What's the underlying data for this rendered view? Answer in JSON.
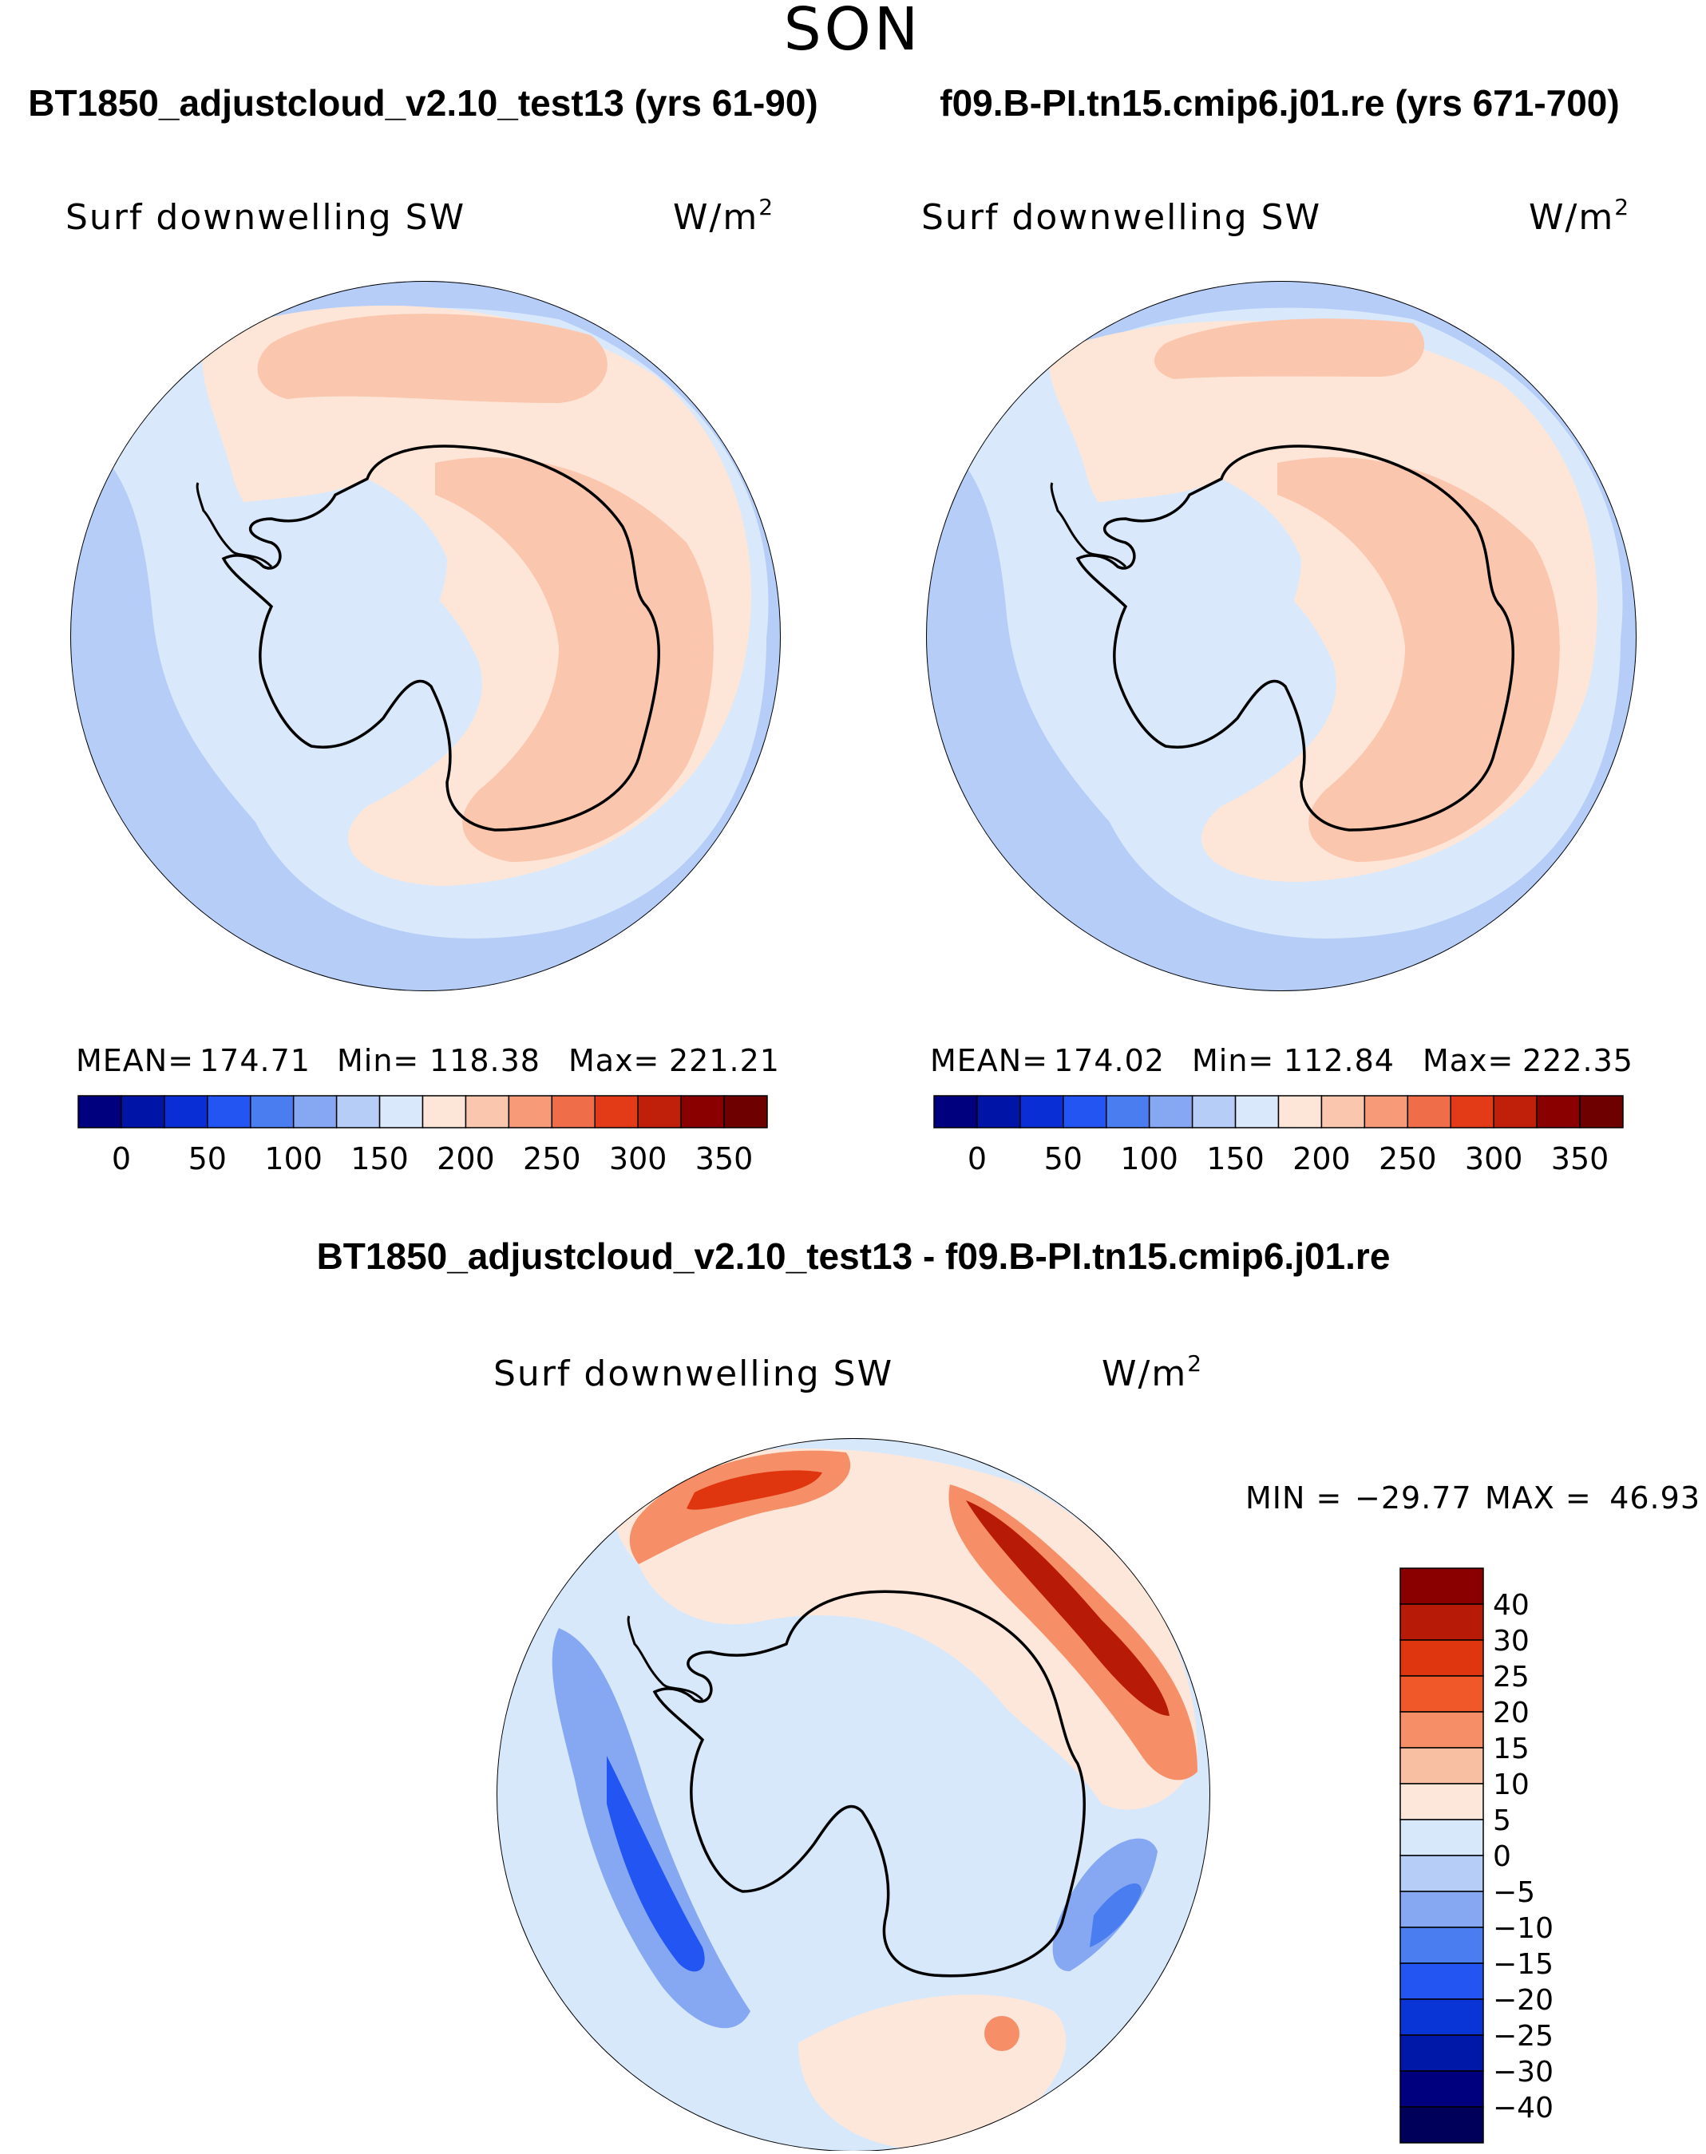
{
  "chart_data": [
    {
      "type": "heatmap",
      "projection": "south-polar-stereographic",
      "season": "SON",
      "title": "BT1850_adjustcloud_v2.10_test13 (yrs 61-90)",
      "variable": "Surf downwelling SW",
      "units": "W/m",
      "units_sup": "2",
      "stats": {
        "mean_label": "MEAN=",
        "mean": "174.71",
        "min_label": "Min=",
        "min": "118.38",
        "max_label": "Max=",
        "max": "221.21"
      },
      "colorbar": {
        "tick_labels": [
          "0",
          "50",
          "100",
          "150",
          "200",
          "250",
          "300",
          "350"
        ],
        "levels": [
          0,
          25,
          50,
          75,
          100,
          125,
          150,
          175,
          200,
          225,
          250,
          275,
          300,
          325,
          350
        ],
        "colors": [
          "#00007f",
          "#0015a8",
          "#0a2ed6",
          "#2255f2",
          "#4a7df0",
          "#86a8f3",
          "#b5cdf7",
          "#d9e9fb",
          "#fde6d8",
          "#fbc6ae",
          "#f69a78",
          "#ef6e49",
          "#e33b18",
          "#c0200a",
          "#8a0000",
          "#6e0000"
        ]
      }
    },
    {
      "type": "heatmap",
      "projection": "south-polar-stereographic",
      "season": "SON",
      "title": "f09.B-PI.tn15.cmip6.j01.re (yrs 671-700)",
      "variable": "Surf downwelling SW",
      "units": "W/m",
      "units_sup": "2",
      "stats": {
        "mean_label": "MEAN=",
        "mean": "174.02",
        "min_label": "Min=",
        "min": "112.84",
        "max_label": "Max=",
        "max": "222.35"
      },
      "colorbar": {
        "tick_labels": [
          "0",
          "50",
          "100",
          "150",
          "200",
          "250",
          "300",
          "350"
        ],
        "levels": [
          0,
          25,
          50,
          75,
          100,
          125,
          150,
          175,
          200,
          225,
          250,
          275,
          300,
          325,
          350
        ],
        "colors": [
          "#00007f",
          "#0015a8",
          "#0a2ed6",
          "#2255f2",
          "#4a7df0",
          "#86a8f3",
          "#b5cdf7",
          "#d9e9fb",
          "#fde6d8",
          "#fbc6ae",
          "#f69a78",
          "#ef6e49",
          "#e33b18",
          "#c0200a",
          "#8a0000",
          "#6e0000"
        ]
      }
    },
    {
      "type": "heatmap",
      "projection": "south-polar-stereographic",
      "season": "SON",
      "title": "BT1850_adjustcloud_v2.10_test13 - f09.B-PI.tn15.cmip6.j01.re",
      "variable": "Surf downwelling SW",
      "units": "W/m",
      "units_sup": "2",
      "stats": {
        "min_label": "MIN =",
        "min": "−29.77",
        "max_label": "MAX =",
        "max": "46.93"
      },
      "colorbar": {
        "tick_labels": [
          "40",
          "30",
          "25",
          "20",
          "15",
          "10",
          "5",
          "0",
          "−5",
          "−10",
          "−15",
          "−20",
          "−25",
          "−30",
          "−40"
        ],
        "levels": [
          40,
          30,
          25,
          20,
          15,
          10,
          5,
          0,
          -5,
          -10,
          -15,
          -20,
          -25,
          -30,
          -40
        ],
        "colors": [
          "#8a0000",
          "#b81a08",
          "#e0360f",
          "#f0582a",
          "#f68f67",
          "#f9bfa3",
          "#fde7db",
          "#d8e8fb",
          "#b5cdf7",
          "#86a8f3",
          "#4a7df0",
          "#2255f2",
          "#0a35d6",
          "#0018a8",
          "#00007f",
          "#00005a"
        ]
      }
    }
  ],
  "header": {
    "season": "SON"
  }
}
